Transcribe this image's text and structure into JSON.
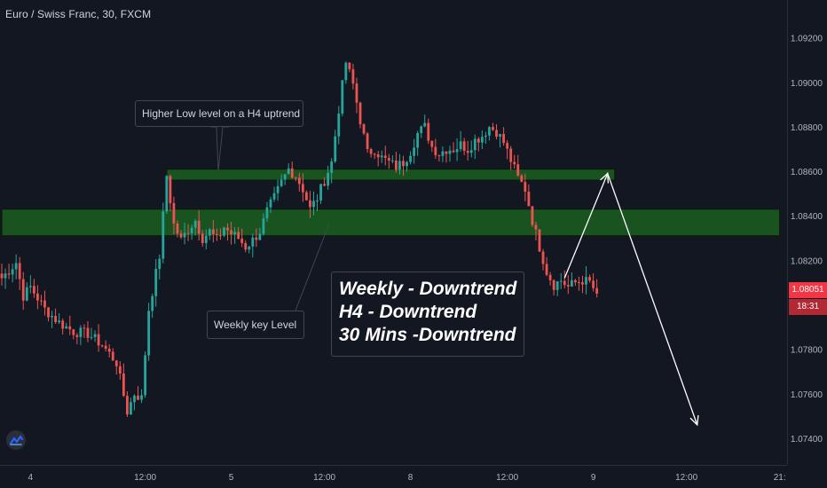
{
  "chart_title": "Euro / Swiss Franc, 30, FXCM",
  "colors": {
    "up": "#26a69a",
    "down": "#ef5350",
    "zone_fill": "#1b5e20",
    "zone_border": "#0b1a0c",
    "background": "#131722",
    "arrow": "#ffffff",
    "price_tag": "#f23645"
  },
  "chart_data": {
    "type": "candlestick",
    "symbol": "Euro / Swiss Franc",
    "interval": "30",
    "source": "FXCM",
    "ylim": [
      1.0728,
      1.0937
    ],
    "y_ticks": [
      "1.09200",
      "1.09000",
      "1.08800",
      "1.08600",
      "1.08400",
      "1.08200",
      "1.07800",
      "1.07600",
      "1.07400"
    ],
    "y_tick_values": [
      1.092,
      1.09,
      1.088,
      1.086,
      1.084,
      1.082,
      1.078,
      1.076,
      1.074
    ],
    "x_ticks": [
      "4",
      "12:00",
      "5",
      "12:00",
      "8",
      "12:00",
      "9",
      "12:00",
      "21:"
    ],
    "x_tick_index": [
      8,
      40,
      64,
      90,
      114,
      141,
      165,
      191,
      217
    ],
    "current_price": "1.08051",
    "countdown": "18:31",
    "zones": [
      {
        "name": "Higher Low level on a H4 uptrend",
        "low": 1.0856,
        "high": 1.0861,
        "from_index": 46,
        "to_index": 171
      },
      {
        "name": "Weekly key Level",
        "low": 1.0831,
        "high": 1.0843,
        "from_index": 0,
        "to_index": 217
      }
    ],
    "projection": [
      {
        "index": 157,
        "price": 1.0812
      },
      {
        "index": 169,
        "price": 1.0859
      },
      {
        "index": 194,
        "price": 1.0746
      }
    ],
    "waypoints": [
      [
        0,
        1.0812
      ],
      [
        4,
        1.0819
      ],
      [
        6,
        1.0804
      ],
      [
        8,
        1.0808
      ],
      [
        12,
        1.0798
      ],
      [
        16,
        1.0792
      ],
      [
        20,
        1.0788
      ],
      [
        24,
        1.0787
      ],
      [
        28,
        1.0782
      ],
      [
        32,
        1.0774
      ],
      [
        35,
        1.0752
      ],
      [
        37,
        1.076
      ],
      [
        39,
        1.0758
      ],
      [
        41,
        1.0798
      ],
      [
        44,
        1.0822
      ],
      [
        46,
        1.0858
      ],
      [
        48,
        1.0836
      ],
      [
        50,
        1.0829
      ],
      [
        52,
        1.0834
      ],
      [
        54,
        1.0838
      ],
      [
        56,
        1.083
      ],
      [
        58,
        1.0833
      ],
      [
        60,
        1.0829
      ],
      [
        62,
        1.0835
      ],
      [
        64,
        1.0832
      ],
      [
        66,
        1.083
      ],
      [
        68,
        1.0826
      ],
      [
        70,
        1.0829
      ],
      [
        72,
        1.0833
      ],
      [
        74,
        1.0842
      ],
      [
        76,
        1.0848
      ],
      [
        78,
        1.0855
      ],
      [
        80,
        1.0861
      ],
      [
        82,
        1.0858
      ],
      [
        84,
        1.0852
      ],
      [
        86,
        1.0843
      ],
      [
        88,
        1.0848
      ],
      [
        90,
        1.0856
      ],
      [
        92,
        1.0864
      ],
      [
        94,
        1.0888
      ],
      [
        96,
        1.0909
      ],
      [
        98,
        1.0899
      ],
      [
        100,
        1.0883
      ],
      [
        102,
        1.0868
      ],
      [
        104,
        1.087
      ],
      [
        106,
        1.0866
      ],
      [
        108,
        1.0864
      ],
      [
        110,
        1.0862
      ],
      [
        112,
        1.0864
      ],
      [
        114,
        1.0869
      ],
      [
        116,
        1.0877
      ],
      [
        118,
        1.088
      ],
      [
        120,
        1.0871
      ],
      [
        122,
        1.0868
      ],
      [
        124,
        1.087
      ],
      [
        126,
        1.087
      ],
      [
        128,
        1.0872
      ],
      [
        130,
        1.087
      ],
      [
        132,
        1.0874
      ],
      [
        134,
        1.0876
      ],
      [
        136,
        1.088
      ],
      [
        138,
        1.0878
      ],
      [
        140,
        1.0873
      ],
      [
        142,
        1.0865
      ],
      [
        144,
        1.0857
      ],
      [
        146,
        1.0852
      ],
      [
        148,
        1.0838
      ],
      [
        150,
        1.0826
      ],
      [
        152,
        1.0815
      ],
      [
        154,
        1.0809
      ],
      [
        156,
        1.0811
      ],
      [
        158,
        1.0808
      ],
      [
        160,
        1.081
      ],
      [
        162,
        1.0811
      ],
      [
        164,
        1.081
      ],
      [
        166,
        1.0805
      ]
    ]
  },
  "annotations": {
    "higher_low": "Higher Low level on a H4 uptrend",
    "weekly_key": "Weekly key Level",
    "trend_weekly": "Weekly - Downtrend",
    "trend_h4": "H4 - Downtrend",
    "trend_30m": "30 Mins -Downtrend"
  },
  "icons": {
    "logo": "tradingview-logo-icon"
  }
}
